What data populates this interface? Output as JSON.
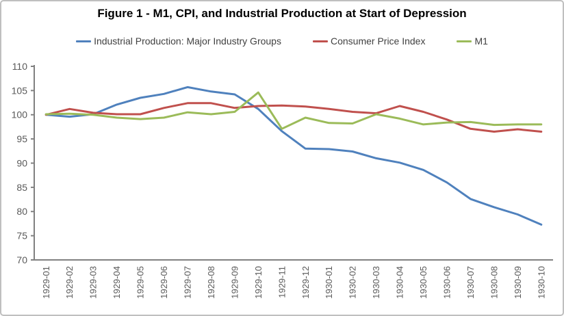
{
  "chart_data": {
    "type": "line",
    "title": "Figure 1 - M1, CPI, and Industrial Production at Start of Depression",
    "xlabel": "",
    "ylabel": "",
    "ylim": [
      70,
      110
    ],
    "yticks": [
      70,
      75,
      80,
      85,
      90,
      95,
      100,
      105,
      110
    ],
    "grid": false,
    "legend_position": "top",
    "axis_color": "#808080",
    "tick_label_color": "#595959",
    "categories": [
      "1929-01",
      "1929-02",
      "1929-03",
      "1929-04",
      "1929-05",
      "1929-06",
      "1929-07",
      "1929-08",
      "1929-09",
      "1929-10",
      "1929-11",
      "1929-12",
      "1930-01",
      "1930-02",
      "1930-03",
      "1930-04",
      "1930-05",
      "1930-06",
      "1930-07",
      "1930-08",
      "1930-09",
      "1930-10"
    ],
    "series": [
      {
        "name": "Industrial Production: Major Industry Groups",
        "color": "#4F81BD",
        "values": [
          100.0,
          99.6,
          100.1,
          102.1,
          103.5,
          104.3,
          105.7,
          104.8,
          104.2,
          101.2,
          96.6,
          93.0,
          92.9,
          92.4,
          91.0,
          90.1,
          88.6,
          86.0,
          82.6,
          80.9,
          79.4,
          77.3
        ]
      },
      {
        "name": "Consumer Price Index",
        "color": "#C0504D",
        "values": [
          100.0,
          101.2,
          100.4,
          100.1,
          100.1,
          101.4,
          102.4,
          102.4,
          101.4,
          101.8,
          101.9,
          101.7,
          101.2,
          100.6,
          100.3,
          101.8,
          100.6,
          99.0,
          97.1,
          96.5,
          97.0,
          96.5
        ]
      },
      {
        "name": "M1",
        "color": "#9BBB59",
        "values": [
          100.1,
          100.2,
          100.0,
          99.4,
          99.1,
          99.4,
          100.5,
          100.1,
          100.6,
          104.6,
          97.1,
          99.4,
          98.3,
          98.2,
          100.1,
          99.2,
          98.0,
          98.4,
          98.5,
          97.9,
          98.0,
          98.0
        ]
      }
    ]
  }
}
